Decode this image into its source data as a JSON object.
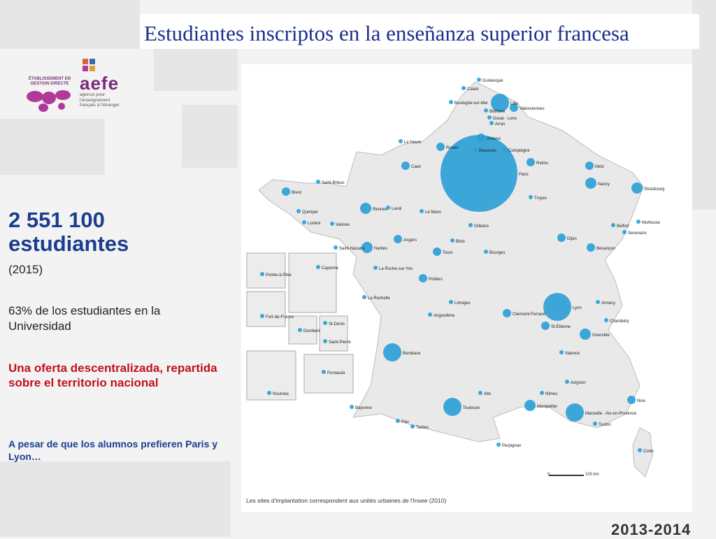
{
  "title": "Estudiantes inscriptos en la enseñanza superior francesa",
  "logo": {
    "tag": "ÉTABLISSEMENT EN GESTION DIRECTE",
    "brand": "aefe",
    "sub": "agence pour l'enseignement français à l'étranger"
  },
  "stats": {
    "number": "2 551 100",
    "unit": "estudiantes",
    "year": "(2015)",
    "share": "63% de los estudiantes en la Universidad",
    "highlight": "Una oferta descentralizada, repartida sobre el territorio nacional",
    "note": "A pesar de que los alumnos prefieren Paris y Lyon…"
  },
  "map": {
    "caption": "Les sites d'implantation correspondent aux unités urbaines de l'Insee (2010)",
    "scale_label": "100 km",
    "scale_zero": "0",
    "color": "#2a9fd6",
    "cities": [
      {
        "name": "Dunkerque",
        "size": 1
      },
      {
        "name": "Calais",
        "size": 1
      },
      {
        "name": "Lille",
        "size": 4
      },
      {
        "name": "Boulogne-sur-Mer",
        "size": 1
      },
      {
        "name": "Béthune",
        "size": 1
      },
      {
        "name": "Douai - Lens",
        "size": 1
      },
      {
        "name": "Valenciennes",
        "size": 2
      },
      {
        "name": "Arras",
        "size": 1
      },
      {
        "name": "Amiens",
        "size": 2
      },
      {
        "name": "Le Havre",
        "size": 1
      },
      {
        "name": "Rouen",
        "size": 2
      },
      {
        "name": "Beauvais",
        "size": 1
      },
      {
        "name": "Compiègne",
        "size": 1
      },
      {
        "name": "Caen",
        "size": 2
      },
      {
        "name": "Paris",
        "size": 8
      },
      {
        "name": "Reims",
        "size": 2
      },
      {
        "name": "Metz",
        "size": 2
      },
      {
        "name": "Nancy",
        "size": 3
      },
      {
        "name": "Strasbourg",
        "size": 3
      },
      {
        "name": "Saint-Brieuc",
        "size": 1
      },
      {
        "name": "Brest",
        "size": 2
      },
      {
        "name": "Rennes",
        "size": 3
      },
      {
        "name": "Quimper",
        "size": 1
      },
      {
        "name": "Laval",
        "size": 1
      },
      {
        "name": "Le Mans",
        "size": 1
      },
      {
        "name": "Troyes",
        "size": 1
      },
      {
        "name": "Lorient",
        "size": 1
      },
      {
        "name": "Vannes",
        "size": 1
      },
      {
        "name": "Orléans",
        "size": 1
      },
      {
        "name": "Mulhouse",
        "size": 1
      },
      {
        "name": "Belfort",
        "size": 1
      },
      {
        "name": "Sevenans",
        "size": 1
      },
      {
        "name": "Angers",
        "size": 2
      },
      {
        "name": "Nantes",
        "size": 3
      },
      {
        "name": "Blois",
        "size": 1
      },
      {
        "name": "Dijon",
        "size": 2
      },
      {
        "name": "Saint-Nazaire",
        "size": 1
      },
      {
        "name": "Tours",
        "size": 2
      },
      {
        "name": "Bourges",
        "size": 1
      },
      {
        "name": "Besançon",
        "size": 2
      },
      {
        "name": "La Roche-sur-Yon",
        "size": 1
      },
      {
        "name": "Poitiers",
        "size": 2
      },
      {
        "name": "La Rochelle",
        "size": 1
      },
      {
        "name": "Limoges",
        "size": 1
      },
      {
        "name": "Lyon",
        "size": 5
      },
      {
        "name": "Annecy",
        "size": 1
      },
      {
        "name": "Chambéry",
        "size": 1
      },
      {
        "name": "Angoulême",
        "size": 1
      },
      {
        "name": "Clermont-Ferrand",
        "size": 2
      },
      {
        "name": "St-Étienne",
        "size": 2
      },
      {
        "name": "Grenoble",
        "size": 3
      },
      {
        "name": "Bordeaux",
        "size": 4
      },
      {
        "name": "Valence",
        "size": 1
      },
      {
        "name": "Avignon",
        "size": 1
      },
      {
        "name": "Albi",
        "size": 1
      },
      {
        "name": "Nîmes",
        "size": 1
      },
      {
        "name": "Nice",
        "size": 2
      },
      {
        "name": "Montpellier",
        "size": 3
      },
      {
        "name": "Bayonne",
        "size": 1
      },
      {
        "name": "Pau",
        "size": 1
      },
      {
        "name": "Toulouse",
        "size": 4
      },
      {
        "name": "Marseille - Aix-en-Provence",
        "size": 4
      },
      {
        "name": "Toulon",
        "size": 1
      },
      {
        "name": "Tarbes",
        "size": 1
      },
      {
        "name": "Perpignan",
        "size": 1
      },
      {
        "name": "Corte",
        "size": 1
      },
      {
        "name": "Pointe-à-Pitre",
        "size": 1
      },
      {
        "name": "Cayenne",
        "size": 1
      },
      {
        "name": "Fort-de-France",
        "size": 1
      },
      {
        "name": "Dembeni",
        "size": 1
      },
      {
        "name": "St-Denis",
        "size": 1
      },
      {
        "name": "Saint-Pierre",
        "size": 1
      },
      {
        "name": "Punaauia",
        "size": 1
      },
      {
        "name": "Nouméa",
        "size": 1
      }
    ]
  },
  "period": "2013-2014"
}
